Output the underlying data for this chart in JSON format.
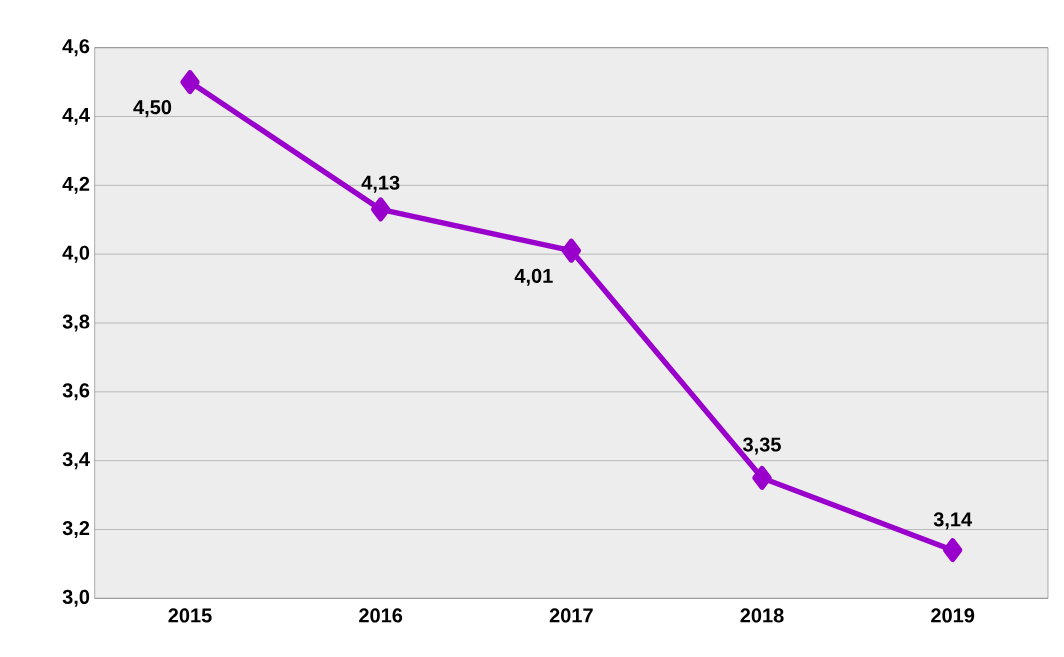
{
  "chart_data": {
    "type": "line",
    "categories": [
      "2015",
      "2016",
      "2017",
      "2018",
      "2019"
    ],
    "series": [
      {
        "color": "#9900cc",
        "values": [
          4.5,
          4.13,
          4.01,
          3.35,
          3.14
        ],
        "value_labels": [
          "4,50",
          "4,13",
          "4,01",
          "3,35",
          "3,14"
        ]
      }
    ],
    "ylim": [
      3.0,
      4.6
    ],
    "yticks": [
      {
        "value": 3.0,
        "label": "3,0"
      },
      {
        "value": 3.2,
        "label": "3,2"
      },
      {
        "value": 3.4,
        "label": "3,4"
      },
      {
        "value": 3.6,
        "label": "3,6"
      },
      {
        "value": 3.8,
        "label": "3,8"
      },
      {
        "value": 4.0,
        "label": "4,0"
      },
      {
        "value": 4.2,
        "label": "4,2"
      },
      {
        "value": 4.4,
        "label": "4,4"
      },
      {
        "value": 4.6,
        "label": "4,6"
      }
    ],
    "grid": "y",
    "marker": "diamond",
    "line_style": "solid"
  }
}
